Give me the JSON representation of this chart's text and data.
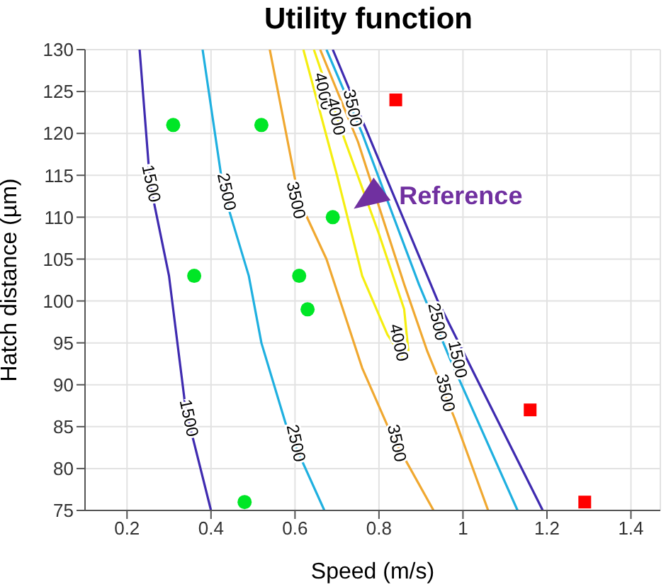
{
  "chart_data": {
    "type": "line",
    "title": "Utility function",
    "xlabel": "Speed (m/s)",
    "ylabel": "Hatch distance (µm)",
    "xlim": [
      0.1,
      1.47
    ],
    "xticks": [
      0.2,
      0.4,
      0.6,
      0.8,
      1,
      1.2,
      1.4
    ],
    "ylim": [
      75,
      130
    ],
    "yticks": [
      75,
      80,
      85,
      90,
      95,
      100,
      105,
      110,
      115,
      120,
      125,
      130
    ],
    "grid": true,
    "marker": "none",
    "series": [
      {
        "color": "#3f2bb0",
        "x": [
          0.23,
          0.255,
          0.3,
          0.34,
          0.4
        ],
        "values": [
          130,
          114,
          103,
          87,
          75
        ]
      },
      {
        "color": "#1fb0e0",
        "x": [
          0.38,
          0.43,
          0.49,
          0.52,
          0.58,
          0.67
        ],
        "values": [
          130,
          113,
          103,
          95,
          85,
          75
        ]
      },
      {
        "color": "#f0a830",
        "x": [
          0.54,
          0.61,
          0.675,
          0.76,
          0.83,
          0.93
        ],
        "values": [
          130,
          112,
          105,
          92,
          84,
          75
        ]
      },
      {
        "color": "#f5ee10",
        "x": [
          0.62,
          0.7,
          0.76,
          0.82,
          0.86
        ],
        "values": [
          130,
          115,
          103,
          96,
          93
        ]
      },
      {
        "color": "#f5ee10",
        "x": [
          0.645,
          0.72,
          0.8,
          0.86,
          0.87
        ],
        "values": [
          130,
          119,
          108,
          99,
          94
        ]
      },
      {
        "color": "#f0a830",
        "x": [
          0.66,
          0.75,
          0.86,
          0.915,
          0.98,
          1.06
        ],
        "values": [
          130,
          119,
          102,
          94,
          86,
          75
        ]
      },
      {
        "color": "#1fb0e0",
        "x": [
          0.675,
          0.76,
          0.895,
          0.97,
          1.13
        ],
        "values": [
          130,
          120,
          102,
          93,
          75
        ]
      },
      {
        "color": "#3f2bb0",
        "x": [
          0.69,
          0.79,
          0.94,
          1.03,
          1.19
        ],
        "values": [
          130,
          118,
          100,
          91,
          75
        ]
      },
      {
        "type": "scatter",
        "marker": "circle",
        "color": "#00e626",
        "x": [
          0.31,
          0.52,
          0.69,
          0.36,
          0.61,
          0.63,
          0.48
        ],
        "values": [
          121,
          121,
          110,
          103,
          103,
          99,
          76
        ]
      },
      {
        "type": "scatter",
        "marker": "square",
        "color": "#ff0000",
        "x": [
          0.84,
          1.16,
          1.29
        ],
        "values": [
          124,
          87,
          76
        ]
      }
    ],
    "annotations": [
      {
        "text": "1500",
        "x": 0.255,
        "y": 114
      },
      {
        "text": "1500",
        "x": 0.345,
        "y": 86
      },
      {
        "text": "2500",
        "x": 0.435,
        "y": 113
      },
      {
        "text": "2500",
        "x": 0.6,
        "y": 83
      },
      {
        "text": "3500",
        "x": 0.6,
        "y": 112
      },
      {
        "text": "3500",
        "x": 0.84,
        "y": 83
      },
      {
        "text": "4000",
        "x": 0.665,
        "y": 125
      },
      {
        "text": "4000",
        "x": 0.695,
        "y": 122
      },
      {
        "text": "3500",
        "x": 0.735,
        "y": 123
      },
      {
        "text": "4000",
        "x": 0.845,
        "y": 95
      },
      {
        "text": "3500",
        "x": 0.956,
        "y": 89
      },
      {
        "text": "2500",
        "x": 0.937,
        "y": 97.5
      },
      {
        "text": "1500",
        "x": 0.985,
        "y": 93
      },
      {
        "text": "Reference",
        "x": 0.74,
        "y": 111
      }
    ]
  }
}
